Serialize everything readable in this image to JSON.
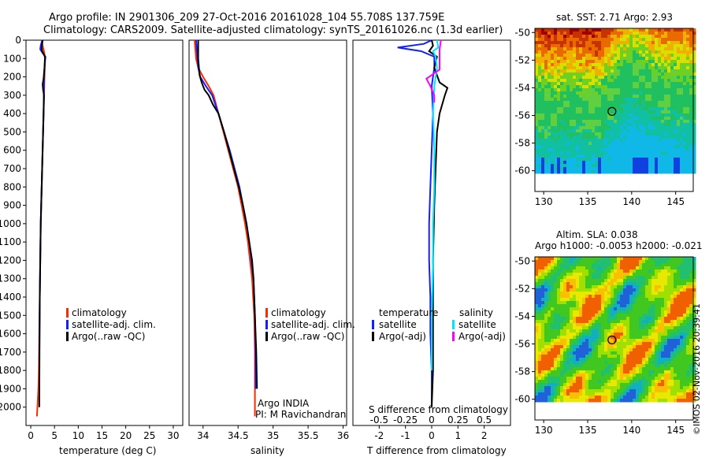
{
  "header": {
    "title_line1": "Argo profile: IN 2901306_209 27-Oct-2016 20161028_104 55.708S 137.759E",
    "title_line2": "Climatology: CARS2009. Satellite-adjusted climatology: synTS_20161026.nc (1.3d earlier)"
  },
  "colors": {
    "climatology": "#ff2a00",
    "satellite": "#1020ff",
    "argo": "#000000",
    "sal_satellite": "#00e5ff",
    "sal_argo": "#ff00ff"
  },
  "chart_data": [
    {
      "id": "temperature",
      "type": "line",
      "xlabel": "temperature (deg C)",
      "xlim": [
        -1,
        32
      ],
      "ylim": [
        2100,
        0
      ],
      "yticks": [
        0,
        100,
        200,
        300,
        400,
        500,
        600,
        700,
        800,
        900,
        1000,
        1100,
        1200,
        1300,
        1400,
        1500,
        1600,
        1700,
        1800,
        1900,
        2000
      ],
      "xticks": [
        0,
        5,
        10,
        15,
        20,
        25,
        30
      ],
      "legend": {
        "placement": "center-left",
        "entries": [
          "climatology",
          "satellite-adj. clim.",
          "Argo(..raw -QC)"
        ]
      },
      "series": [
        {
          "name": "climatology",
          "color": "#ff2a00",
          "x": [
            2.4,
            2.45,
            2.7,
            2.9,
            3.0,
            2.95,
            2.9,
            2.8,
            2.7,
            2.6,
            2.5,
            2.4,
            2.3,
            2.2,
            2.1,
            2.0,
            1.9,
            1.8,
            1.7,
            1.6,
            1.5,
            1.4,
            1.3
          ],
          "y": [
            0,
            25,
            50,
            75,
            100,
            150,
            200,
            300,
            400,
            500,
            600,
            700,
            800,
            900,
            1000,
            1200,
            1400,
            1600,
            1800,
            1900,
            1950,
            2000,
            2050
          ]
        },
        {
          "name": "satellite-adj. clim.",
          "color": "#1020ff",
          "x": [
            2.4,
            2.1,
            2.0,
            2.5,
            3.1,
            2.9,
            2.8,
            2.75,
            2.7,
            2.6,
            2.5,
            2.4,
            2.3,
            2.2,
            2.1,
            2.0,
            1.9,
            1.85,
            1.8
          ],
          "y": [
            0,
            30,
            50,
            70,
            90,
            150,
            200,
            300,
            400,
            500,
            600,
            700,
            800,
            900,
            1000,
            1200,
            1400,
            1600,
            1750
          ]
        },
        {
          "name": "Argo(..raw -QC)",
          "color": "#000000",
          "x": [
            2.5,
            2.3,
            2.4,
            3.0,
            2.9,
            2.7,
            2.5,
            2.6,
            2.8,
            2.7,
            2.6,
            2.5,
            2.4,
            2.3,
            2.2,
            2.1,
            2.0,
            1.9,
            1.85,
            1.8
          ],
          "y": [
            0,
            40,
            60,
            90,
            150,
            210,
            240,
            270,
            300,
            400,
            500,
            600,
            700,
            800,
            900,
            1000,
            1200,
            1400,
            1600,
            2000
          ]
        }
      ]
    },
    {
      "id": "salinity",
      "type": "line",
      "xlabel": "salinity",
      "xlim": [
        33.8,
        36.05
      ],
      "ylim": [
        2100,
        0
      ],
      "xticks": [
        34,
        34.5,
        35,
        35.5,
        36
      ],
      "legend": {
        "placement": "center-right",
        "entries": [
          "climatology",
          "satellite-adj. clim.",
          "Argo(..raw -QC)"
        ]
      },
      "series": [
        {
          "name": "climatology",
          "color": "#ff2a00",
          "x": [
            33.88,
            33.9,
            33.93,
            34.0,
            34.08,
            34.15,
            34.22,
            34.29,
            34.36,
            34.43,
            34.5,
            34.55,
            34.6,
            34.64,
            34.67,
            34.7,
            34.73,
            34.74,
            34.74,
            34.74
          ],
          "y": [
            0,
            100,
            150,
            200,
            250,
            300,
            400,
            500,
            600,
            700,
            800,
            900,
            1000,
            1100,
            1200,
            1300,
            1500,
            1700,
            1900,
            2050
          ]
        },
        {
          "name": "satellite-adj. clim.",
          "color": "#1020ff",
          "x": [
            33.9,
            33.92,
            33.93,
            33.96,
            34.04,
            34.13,
            34.22,
            34.3,
            34.38,
            34.45,
            34.52,
            34.57,
            34.62,
            34.66,
            34.69,
            34.72,
            34.74,
            34.75,
            34.75
          ],
          "y": [
            0,
            100,
            150,
            200,
            250,
            300,
            400,
            500,
            600,
            700,
            800,
            900,
            1000,
            1100,
            1200,
            1300,
            1500,
            1700,
            1900
          ]
        },
        {
          "name": "Argo(..raw -QC)",
          "color": "#000000",
          "x": [
            33.93,
            33.93,
            33.95,
            33.98,
            34.02,
            34.08,
            34.14,
            34.22,
            34.3,
            34.37,
            34.44,
            34.51,
            34.57,
            34.62,
            34.66,
            34.7,
            34.72,
            34.74,
            34.76,
            34.77
          ],
          "y": [
            0,
            100,
            190,
            230,
            270,
            300,
            350,
            400,
            500,
            600,
            700,
            800,
            900,
            1000,
            1100,
            1200,
            1300,
            1500,
            1700,
            1900
          ]
        }
      ]
    },
    {
      "id": "difference",
      "type": "line",
      "xlabel": "T difference from climatology",
      "xlabel_top": "S difference from climatology",
      "xlim": [
        -3,
        3
      ],
      "ylim": [
        2100,
        0
      ],
      "xticks": [
        "-2",
        "-1",
        "0",
        "1",
        "2"
      ],
      "xticks_top": [
        "-0.5",
        "-0.25",
        "0",
        "0.25",
        "0.5"
      ],
      "legend": {
        "placement": "center",
        "headers": [
          "temperature",
          "salinity"
        ],
        "entries": [
          "satellite",
          "Argo(-adj)",
          "satellite",
          "Argo(-adj)"
        ]
      },
      "series": [
        {
          "name": "satellite",
          "group": "temperature",
          "color": "#1020ff",
          "x": [
            0,
            -0.3,
            -1.3,
            -0.4,
            0.1,
            0.1,
            0,
            0.05,
            0,
            -0.05,
            -0.1,
            -0.1,
            -0.05,
            -0.05,
            0,
            0
          ],
          "y": [
            0,
            20,
            40,
            60,
            90,
            150,
            250,
            400,
            600,
            800,
            1000,
            1200,
            1400,
            1600,
            1800,
            2000
          ]
        },
        {
          "name": "Argo(-adj)",
          "group": "temperature",
          "color": "#000000",
          "x": [
            0,
            0.05,
            -0.1,
            0.2,
            0.1,
            0.3,
            0.6,
            0.5,
            0.3,
            0.2,
            0.15,
            0.1,
            0.05,
            0.05,
            0.05,
            0
          ],
          "y": [
            0,
            30,
            60,
            90,
            150,
            230,
            260,
            300,
            400,
            500,
            700,
            900,
            1200,
            1500,
            1800,
            2000
          ]
        },
        {
          "name": "satellite",
          "group": "salinity",
          "color": "#00e5ff",
          "x": [
            0.2,
            0.25,
            0.05,
            0.15,
            0.2,
            0.1,
            0.05,
            0.1,
            0.1,
            0.05,
            0.05,
            0.0,
            0.0
          ],
          "y": [
            0,
            40,
            60,
            90,
            150,
            250,
            400,
            600,
            800,
            1000,
            1200,
            1500,
            1800
          ]
        },
        {
          "name": "Argo(-adj)",
          "group": "salinity",
          "color": "#ff00ff",
          "x": [
            0.35,
            0.3,
            0.3,
            0.3,
            -0.2,
            -0.05,
            0.1,
            0.1
          ],
          "y": [
            0,
            50,
            100,
            160,
            210,
            250,
            300,
            340
          ]
        }
      ]
    },
    {
      "id": "sst-map",
      "type": "heatmap",
      "title": "sat. SST: 2.71 Argo: 2.93",
      "xlim": [
        129,
        147
      ],
      "ylim": [
        -61.5,
        -49.7
      ],
      "xticks": [
        130,
        135,
        140,
        145
      ],
      "yticks": [
        -50,
        -52,
        -54,
        -56,
        -58,
        -60
      ],
      "marker": {
        "lon": 137.759,
        "lat": -55.708
      }
    },
    {
      "id": "sla-map",
      "type": "heatmap",
      "title": "Altim. SLA: 0.038",
      "subtitle": "Argo h1000: -0.0053 h2000: -0.021",
      "xlim": [
        129,
        147
      ],
      "ylim": [
        -61.5,
        -49.7
      ],
      "xticks": [
        130,
        135,
        140,
        145
      ],
      "yticks": [
        -50,
        -52,
        -54,
        -56,
        -58,
        -60
      ],
      "marker": {
        "lon": 137.759,
        "lat": -55.708
      }
    }
  ],
  "panel_text": {
    "argo_info_line1": "Argo INDIA",
    "argo_info_line2": "PI: M Ravichandran",
    "credit": "©IMOS 02-Nov-2016 20:39:41"
  }
}
